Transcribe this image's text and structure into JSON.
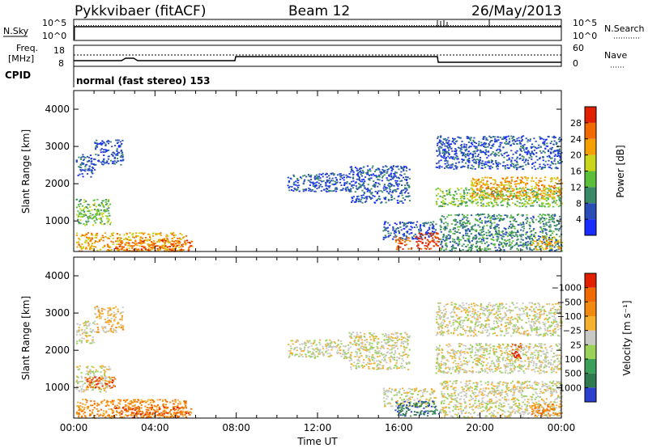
{
  "header": {
    "station": "Pykkvibaer (fitACF)",
    "beam": "Beam 12",
    "date": "26/May/2013"
  },
  "top_panels": {
    "nsky_label": "N.Sky",
    "nsearch_label": "N.Search",
    "scale_hi": "10^5",
    "scale_lo": "10^0",
    "freq_label_line1": "Freq.",
    "freq_label_line2": "[MHz]",
    "freq_ticks": [
      "18",
      "8"
    ],
    "nave_label": "Nave",
    "nave_ticks": [
      "60",
      "0"
    ],
    "cpid_label": "CPID",
    "cpid_text": "normal (fast stereo) 153"
  },
  "chart_data": [
    {
      "type": "heatmap",
      "panel": "power",
      "ylabel": "Slant Range [km]",
      "ylim": [
        180,
        4500
      ],
      "yticks": [
        1000,
        2000,
        3000,
        4000
      ],
      "xlim": [
        0,
        24
      ],
      "colorbar_label": "Power [dB]",
      "colorbar_ticks": [
        "4",
        "8",
        "12",
        "16",
        "20",
        "24",
        "28"
      ],
      "colorbar_colors": [
        "#1a2dff",
        "#2a4db8",
        "#3a8a6a",
        "#5bbf3c",
        "#c9d61a",
        "#f5a000",
        "#f06a00",
        "#e02000"
      ],
      "bands": [
        {
          "x0": 0.1,
          "x1": 1.0,
          "y0": 2200,
          "y1": 2800,
          "level": 1
        },
        {
          "x0": 1.0,
          "x1": 2.4,
          "y0": 2500,
          "y1": 3200,
          "level": 1
        },
        {
          "x0": 0.1,
          "x1": 1.8,
          "y0": 900,
          "y1": 1600,
          "level": 3
        },
        {
          "x0": 0.1,
          "x1": 5.5,
          "y0": 200,
          "y1": 700,
          "level": 5
        },
        {
          "x0": 2.0,
          "x1": 5.8,
          "y0": 200,
          "y1": 500,
          "level": 6
        },
        {
          "x0": 10.5,
          "x1": 13.5,
          "y0": 1800,
          "y1": 2300,
          "level": 1
        },
        {
          "x0": 13.5,
          "x1": 16.5,
          "y0": 1500,
          "y1": 2500,
          "level": 1
        },
        {
          "x0": 15.2,
          "x1": 17.8,
          "y0": 500,
          "y1": 1000,
          "level": 1
        },
        {
          "x0": 15.8,
          "x1": 16.6,
          "y0": 250,
          "y1": 600,
          "level": 6
        },
        {
          "x0": 16.8,
          "x1": 18.0,
          "y0": 250,
          "y1": 700,
          "level": 7
        },
        {
          "x0": 17.8,
          "x1": 24.0,
          "y0": 2400,
          "y1": 3300,
          "level": 1
        },
        {
          "x0": 17.8,
          "x1": 24.0,
          "y0": 1400,
          "y1": 1900,
          "level": 3
        },
        {
          "x0": 19.5,
          "x1": 24.0,
          "y0": 1600,
          "y1": 2200,
          "level": 5
        },
        {
          "x0": 18.0,
          "x1": 24.0,
          "y0": 200,
          "y1": 1200,
          "level": 2
        },
        {
          "x0": 22.5,
          "x1": 24.0,
          "y0": 250,
          "y1": 600,
          "level": 5
        }
      ]
    },
    {
      "type": "heatmap",
      "panel": "velocity",
      "ylabel": "Slant Range [km]",
      "ylim": [
        180,
        4500
      ],
      "yticks": [
        1000,
        2000,
        3000,
        4000
      ],
      "xlim": [
        0,
        24
      ],
      "xlabel": "Time UT",
      "xticks": [
        "00:00",
        "04:00",
        "08:00",
        "12:00",
        "16:00",
        "20:00",
        "00:00"
      ],
      "colorbar_label": "Velocity [m s⁻¹]",
      "colorbar_ticks": [
        "1000",
        "500",
        "100",
        "25",
        "−25",
        "−100",
        "−500",
        "−1000"
      ],
      "colorbar_colors": [
        "#2a3fcc",
        "#2f7a4f",
        "#3aa05a",
        "#9bd25a",
        "#c8c8c4",
        "#f6b030",
        "#f08a10",
        "#f06a00",
        "#e02000"
      ],
      "bands": [
        {
          "x0": 0.1,
          "x1": 1.0,
          "y0": 2200,
          "y1": 2800,
          "level": 4
        },
        {
          "x0": 1.0,
          "x1": 2.4,
          "y0": 2500,
          "y1": 3200,
          "level": 5
        },
        {
          "x0": 0.1,
          "x1": 1.8,
          "y0": 900,
          "y1": 1600,
          "level": 4
        },
        {
          "x0": 0.5,
          "x1": 2.0,
          "y0": 1000,
          "y1": 1300,
          "level": 7
        },
        {
          "x0": 0.1,
          "x1": 5.5,
          "y0": 200,
          "y1": 700,
          "level": 6
        },
        {
          "x0": 2.0,
          "x1": 5.8,
          "y0": 200,
          "y1": 500,
          "level": 7
        },
        {
          "x0": 10.5,
          "x1": 13.5,
          "y0": 1800,
          "y1": 2300,
          "level": 4
        },
        {
          "x0": 13.5,
          "x1": 16.5,
          "y0": 1500,
          "y1": 2500,
          "level": 4
        },
        {
          "x0": 15.2,
          "x1": 17.8,
          "y0": 500,
          "y1": 1000,
          "level": 4
        },
        {
          "x0": 15.8,
          "x1": 18.0,
          "y0": 250,
          "y1": 650,
          "level": 1
        },
        {
          "x0": 17.8,
          "x1": 24.0,
          "y0": 2400,
          "y1": 3300,
          "level": 4
        },
        {
          "x0": 17.8,
          "x1": 24.0,
          "y0": 1400,
          "y1": 2200,
          "level": 4
        },
        {
          "x0": 18.0,
          "x1": 24.0,
          "y0": 200,
          "y1": 1200,
          "level": 4
        },
        {
          "x0": 21.5,
          "x1": 22.0,
          "y0": 1800,
          "y1": 2200,
          "level": 8
        },
        {
          "x0": 22.5,
          "x1": 24.0,
          "y0": 250,
          "y1": 600,
          "level": 6
        }
      ]
    }
  ]
}
